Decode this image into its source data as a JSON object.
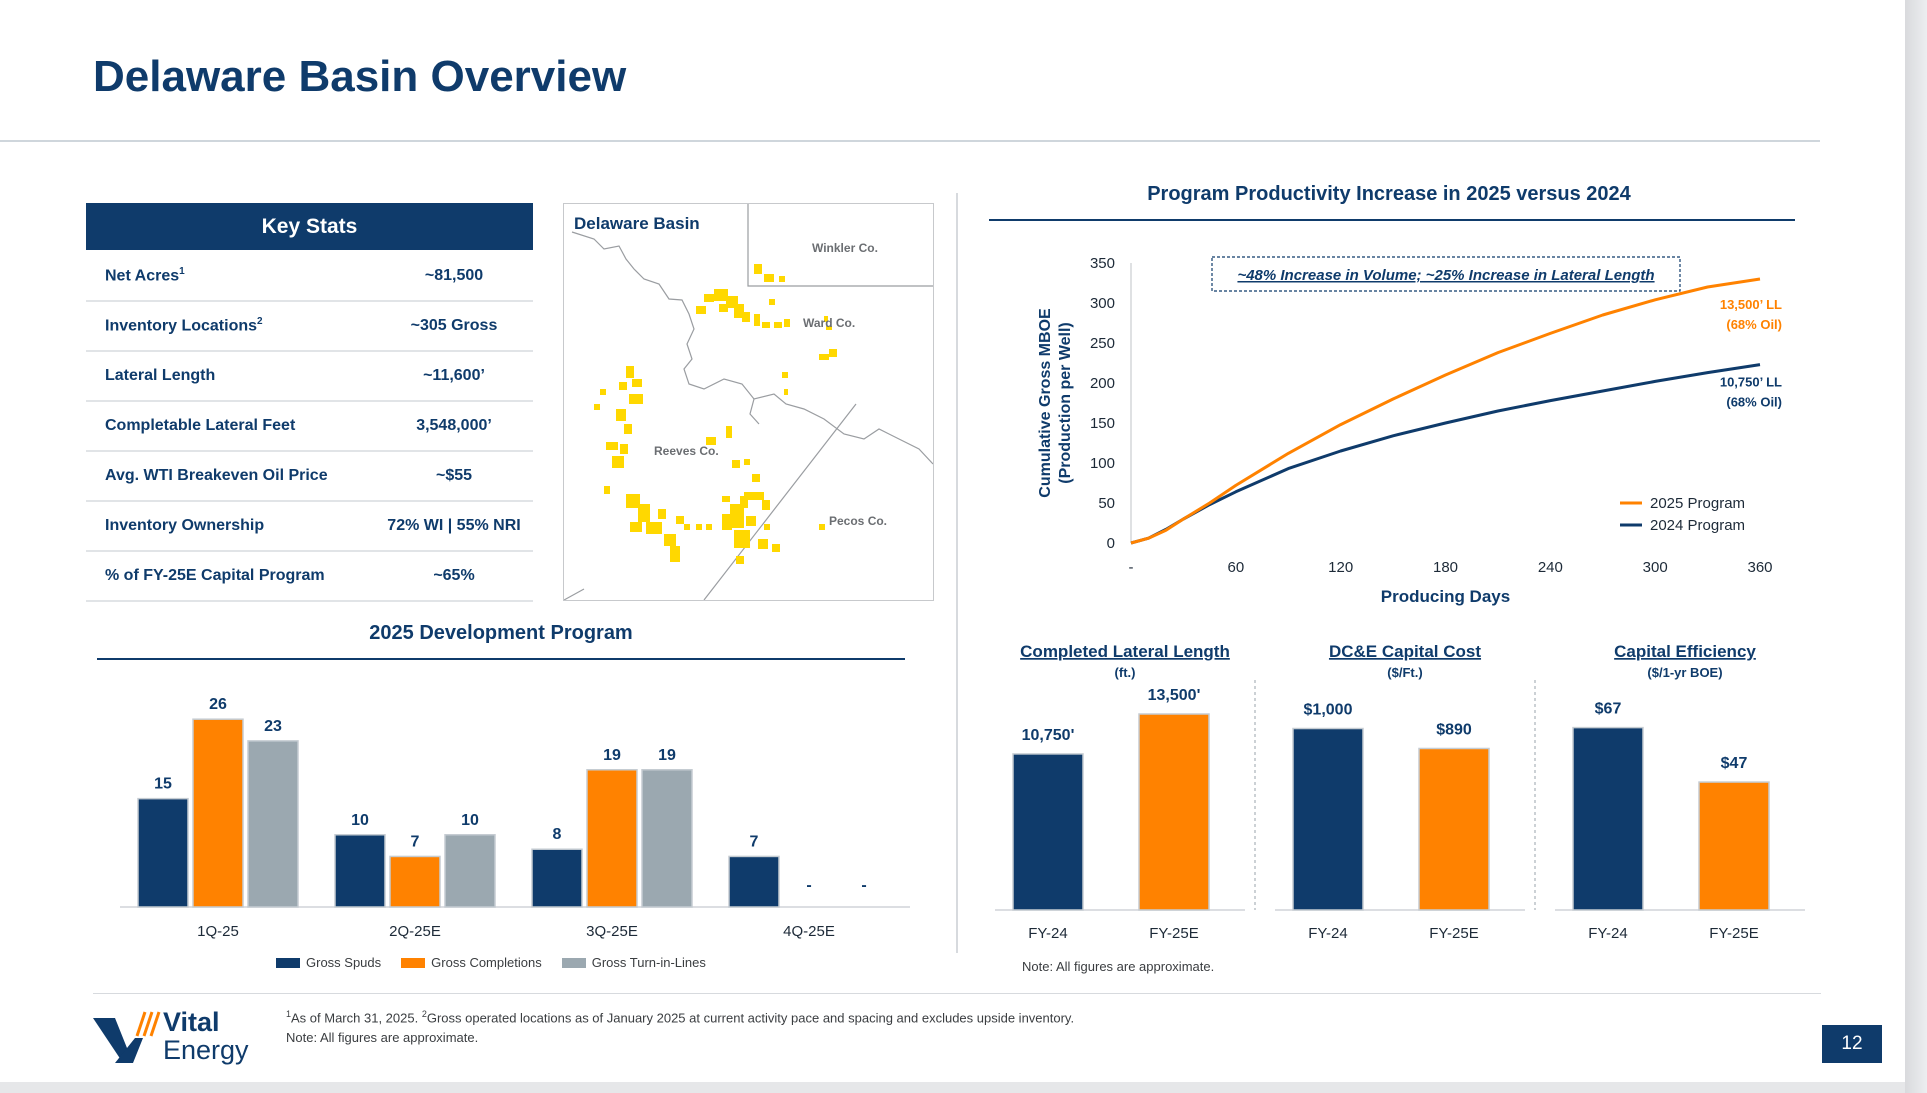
{
  "title": "Delaware Basin Overview",
  "key_stats": {
    "header": "Key Stats",
    "rows": [
      {
        "label": "Net Acres",
        "sup": "1",
        "value": "~81,500"
      },
      {
        "label": "Inventory Locations",
        "sup": "2",
        "value": "~305 Gross"
      },
      {
        "label": "Lateral Length",
        "sup": "",
        "value": "~11,600’"
      },
      {
        "label": "Completable Lateral Feet",
        "sup": "",
        "value": "3,548,000’"
      },
      {
        "label": "Avg. WTI Breakeven Oil Price",
        "sup": "",
        "value": "~$55"
      },
      {
        "label": "Inventory Ownership",
        "sup": "",
        "value": "72% WI | 55% NRI"
      },
      {
        "label": "% of FY-25E Capital Program",
        "sup": "",
        "value": "~65%"
      }
    ]
  },
  "map": {
    "title": "Delaware Basin",
    "counties": [
      "Winkler Co.",
      "Ward Co.",
      "Reeves Co.",
      "Pecos Co."
    ],
    "colors": {
      "acreage": "#ffd800",
      "border": "#9a9da1"
    }
  },
  "colors": {
    "navy": "#0f3b6b",
    "orange": "#ff8200",
    "gray": "#9ba8b0"
  },
  "chart_data": [
    {
      "type": "line",
      "title": "Program Productivity Increase in 2025 versus 2024",
      "xlabel": "Producing Days",
      "ylabel": "Cumulative Gross MBOE (Production per Well)",
      "ylabel_lines": [
        "Cumulative Gross MBOE",
        "(Production per Well)"
      ],
      "x_ticks": [
        "-",
        "60",
        "120",
        "180",
        "240",
        "300",
        "360"
      ],
      "y_ticks": [
        0,
        50,
        100,
        150,
        200,
        250,
        300,
        350
      ],
      "xlim": [
        0,
        360
      ],
      "ylim": [
        0,
        350
      ],
      "annotation": "~48% Increase in Volume; ~25% Increase in Lateral Length",
      "legend_position": "bottom-right",
      "series": [
        {
          "name": "2025 Program",
          "color": "#ff8200",
          "end_label": [
            "13,500’ LL",
            "(68% Oil)"
          ],
          "x": [
            0,
            10,
            20,
            30,
            45,
            60,
            90,
            120,
            150,
            180,
            210,
            240,
            270,
            300,
            330,
            360
          ],
          "y": [
            0,
            6,
            16,
            30,
            50,
            72,
            112,
            148,
            180,
            210,
            238,
            262,
            285,
            304,
            320,
            330
          ]
        },
        {
          "name": "2024 Program",
          "color": "#0f3b6b",
          "end_label": [
            "10,750’ LL",
            "(68% Oil)"
          ],
          "x": [
            0,
            10,
            20,
            30,
            45,
            60,
            90,
            120,
            150,
            180,
            210,
            240,
            270,
            300,
            330,
            360
          ],
          "y": [
            0,
            6,
            17,
            30,
            48,
            64,
            93,
            115,
            134,
            150,
            165,
            178,
            190,
            202,
            213,
            223
          ]
        }
      ]
    },
    {
      "type": "bar",
      "title": "2025 Development Program",
      "categories": [
        "1Q-25",
        "2Q-25E",
        "3Q-25E",
        "4Q-25E"
      ],
      "ylim": [
        0,
        30
      ],
      "legend_position": "bottom",
      "series": [
        {
          "name": "Gross Spuds",
          "color": "#0f3b6b",
          "values": [
            15,
            10,
            8,
            7
          ],
          "labels": [
            "15",
            "10",
            "8",
            "7"
          ]
        },
        {
          "name": "Gross Completions",
          "color": "#ff8200",
          "values": [
            26,
            7,
            19,
            0
          ],
          "labels": [
            "26",
            "7",
            "19",
            "-"
          ]
        },
        {
          "name": "Gross Turn-in-Lines",
          "color": "#9ba8b0",
          "values": [
            23,
            10,
            19,
            0
          ],
          "labels": [
            "23",
            "10",
            "19",
            "-"
          ]
        }
      ]
    },
    {
      "type": "bar",
      "title": "Completed Lateral Length",
      "subtitle": "(ft.)",
      "categories": [
        "FY-24",
        "FY-25E"
      ],
      "values": [
        10750,
        13500
      ],
      "labels": [
        "10,750'",
        "13,500'"
      ],
      "colors": [
        "#0f3b6b",
        "#ff8200"
      ],
      "ylim": [
        0,
        13500
      ]
    },
    {
      "type": "bar",
      "title": "DC&E Capital Cost",
      "subtitle": "($/Ft.)",
      "categories": [
        "FY-24",
        "FY-25E"
      ],
      "values": [
        1000,
        890
      ],
      "labels": [
        "$1,000",
        "$890"
      ],
      "colors": [
        "#0f3b6b",
        "#ff8200"
      ],
      "ylim": [
        0,
        1080
      ]
    },
    {
      "type": "bar",
      "title": "Capital Efficiency",
      "subtitle": "($/1-yr BOE)",
      "categories": [
        "FY-24",
        "FY-25E"
      ],
      "values": [
        67,
        47
      ],
      "labels": [
        "$67",
        "$47"
      ],
      "colors": [
        "#0f3b6b",
        "#ff8200"
      ],
      "ylim": [
        0,
        72
      ]
    }
  ],
  "notes": {
    "right": "Note: All figures are approximate.",
    "footnote_1": "As of March 31, 2025. ",
    "footnote_2": "Gross operated locations as of January 2025 at current activity pace and spacing and excludes upside inventory.",
    "footnote_3": "Note: All figures are approximate."
  },
  "logo": {
    "line1": "Vital",
    "line2": "Energy"
  },
  "page_number": "12"
}
